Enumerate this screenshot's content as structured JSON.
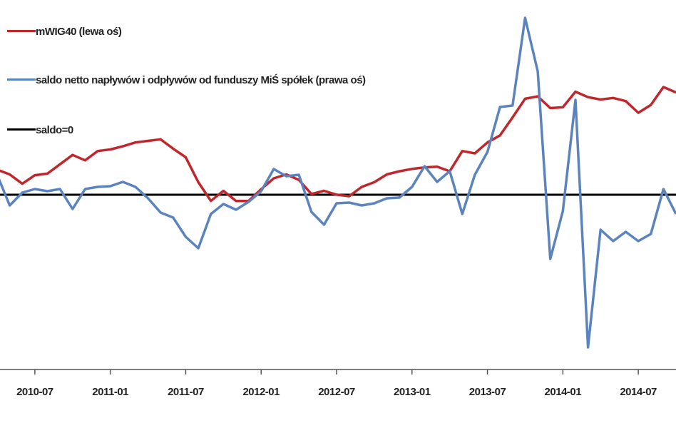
{
  "chart_data": {
    "type": "line",
    "x": [
      "2010-04",
      "2010-05",
      "2010-06",
      "2010-07",
      "2010-08",
      "2010-09",
      "2010-10",
      "2010-11",
      "2010-12",
      "2011-01",
      "2011-02",
      "2011-03",
      "2011-04",
      "2011-05",
      "2011-06",
      "2011-07",
      "2011-08",
      "2011-09",
      "2011-10",
      "2011-11",
      "2011-12",
      "2012-01",
      "2012-02",
      "2012-03",
      "2012-04",
      "2012-05",
      "2012-06",
      "2012-07",
      "2012-08",
      "2012-09",
      "2012-10",
      "2012-11",
      "2012-12",
      "2013-01",
      "2013-02",
      "2013-03",
      "2013-04",
      "2013-05",
      "2013-06",
      "2013-07",
      "2013-08",
      "2013-09",
      "2013-10",
      "2013-11",
      "2013-12",
      "2014-01",
      "2014-02",
      "2014-03",
      "2014-04",
      "2014-05",
      "2014-06",
      "2014-07",
      "2014-08",
      "2014-09",
      "2014-10"
    ],
    "xlim": [
      "2010-04",
      "2014-10"
    ],
    "xticks": [
      "2010-07",
      "2011-01",
      "2011-07",
      "2012-01",
      "2012-07",
      "2013-01",
      "2013-07",
      "2014-01",
      "2014-07"
    ],
    "ylim": [
      0,
      4735
    ],
    "y2lim": [
      -490,
      546
    ],
    "series": [
      {
        "name": "mWIG40 (lewa oś)",
        "color": "#c0272d",
        "axis": "y",
        "values": [
          2560,
          2500,
          2380,
          2490,
          2510,
          2630,
          2750,
          2680,
          2800,
          2820,
          2860,
          2910,
          2930,
          2950,
          2830,
          2720,
          2400,
          2160,
          2290,
          2160,
          2160,
          2310,
          2450,
          2500,
          2430,
          2250,
          2290,
          2240,
          2220,
          2340,
          2400,
          2500,
          2540,
          2570,
          2590,
          2600,
          2540,
          2800,
          2770,
          2910,
          3000,
          3230,
          3470,
          3500,
          3350,
          3360,
          3560,
          3490,
          3460,
          3480,
          3440,
          3290,
          3390,
          3620,
          3550
        ]
      },
      {
        "name": "saldo netto napływów i odpływów od funduszy MiŚ spółek (prawa oś)",
        "color": "#5b84be",
        "axis": "y2",
        "values": [
          56,
          -30,
          6,
          16,
          10,
          16,
          -40,
          16,
          22,
          24,
          36,
          22,
          -10,
          -50,
          -64,
          -118,
          -150,
          -54,
          -26,
          -42,
          -20,
          10,
          72,
          52,
          56,
          -48,
          -84,
          -24,
          -22,
          -30,
          -24,
          -10,
          -8,
          22,
          80,
          36,
          66,
          -54,
          56,
          120,
          246,
          250,
          496,
          346,
          -180,
          -46,
          266,
          -428,
          -98,
          -130,
          -104,
          -130,
          -110,
          16,
          -54
        ]
      }
    ],
    "reference_line": {
      "name": "saldo=0",
      "value": 0,
      "axis": "y2",
      "color": "#000000"
    }
  }
}
